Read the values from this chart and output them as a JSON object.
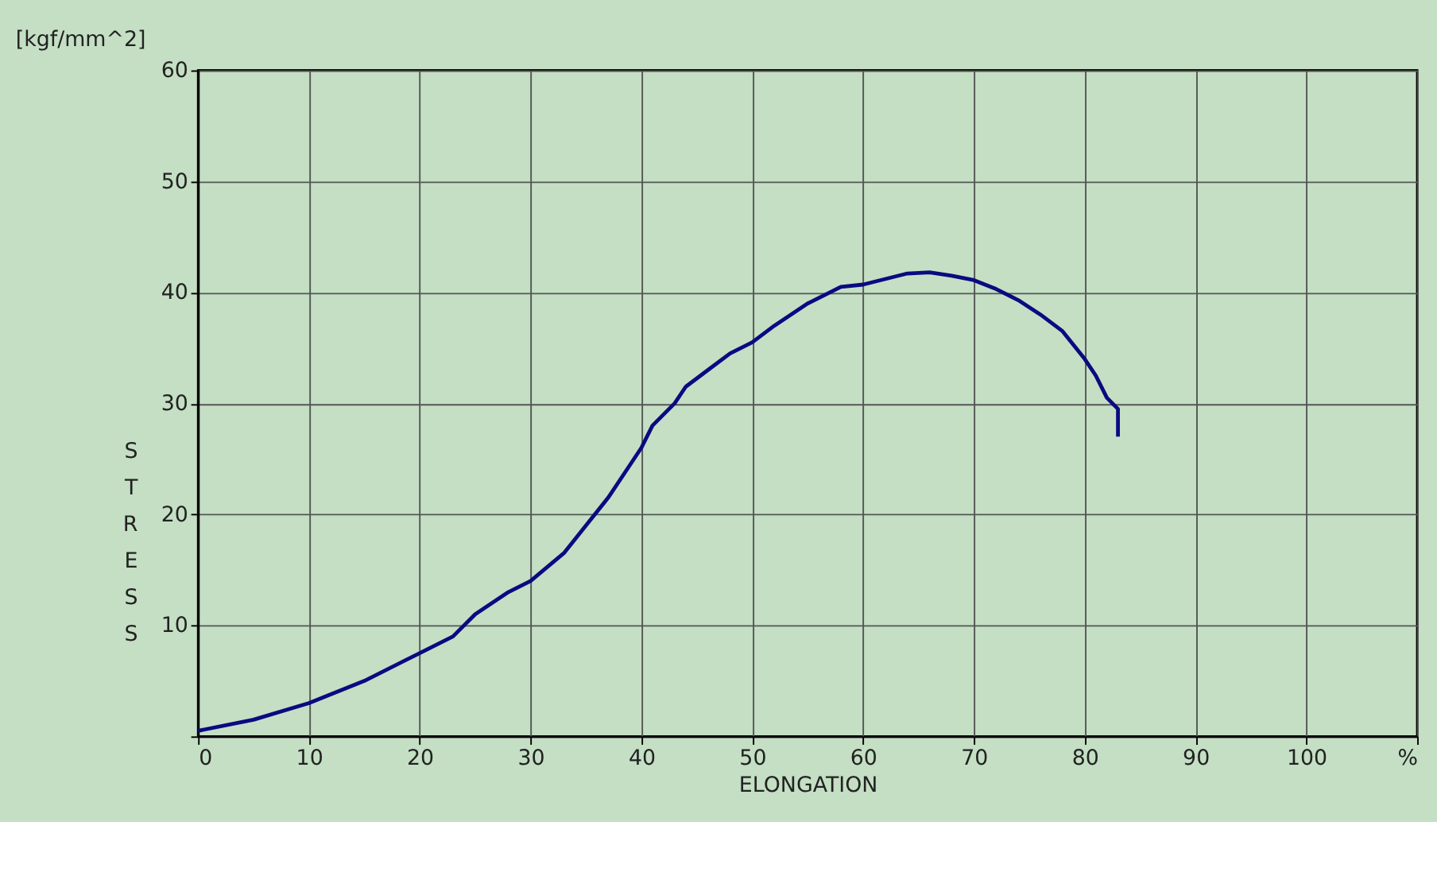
{
  "chart_data": {
    "type": "line",
    "title": "[kgf/mm^2]",
    "xlabel": "ELONGATION",
    "ylabel": "STRESS",
    "x": [
      0,
      5,
      10,
      15,
      20,
      23,
      25,
      28,
      30,
      33,
      35,
      37,
      39,
      40,
      41,
      43,
      44,
      46,
      48,
      50,
      52,
      55,
      58,
      60,
      62,
      64,
      66,
      68,
      70,
      72,
      74,
      76,
      78,
      80,
      81,
      82,
      83,
      83
    ],
    "series": [
      {
        "color": "#0a0a80",
        "values": [
          0.5,
          1.5,
          3,
          5,
          7.5,
          9,
          11,
          13,
          14,
          16.5,
          19,
          21.5,
          24.5,
          26,
          28,
          30,
          31.5,
          33,
          34.5,
          35.5,
          37,
          39,
          40.5,
          40.7,
          41.2,
          41.7,
          41.8,
          41.5,
          41.1,
          40.3,
          39.3,
          38,
          36.5,
          34,
          32.5,
          30.5,
          29.5,
          27
        ]
      }
    ],
    "xlim": [
      0,
      110
    ],
    "xticks": [
      0,
      10,
      20,
      30,
      40,
      50,
      60,
      70,
      80,
      90,
      100,
      {
        "value": 110,
        "label": "%"
      }
    ],
    "ylim": [
      0,
      60
    ],
    "yticks": [
      {
        "value": 0,
        "label": null
      },
      10,
      20,
      30,
      40,
      50,
      60
    ],
    "grid": true,
    "marker": "none",
    "line_style": "solid"
  }
}
